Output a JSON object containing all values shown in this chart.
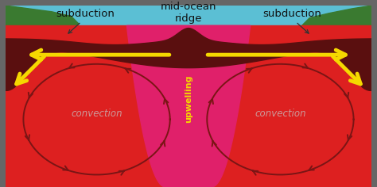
{
  "bg_color": "#666666",
  "ocean_color": "#5bbfd4",
  "land_left_color": "#3a7a30",
  "land_right_color": "#3a7a30",
  "plate_color": "#5a0f0f",
  "mantle_color": "#dd2020",
  "upwelling_color": "#e0206a",
  "arrow_dark": "#7a1515",
  "arrow_yellow": "#f5d800",
  "upwelling_text_color": "#f5d800",
  "convection_text_color": "#cc9999",
  "label_color": "#111111",
  "subduction_label": "subduction",
  "ridge_label": "mid-ocean\nridge",
  "upwelling_label": "upwelling",
  "convection_label": "convection"
}
